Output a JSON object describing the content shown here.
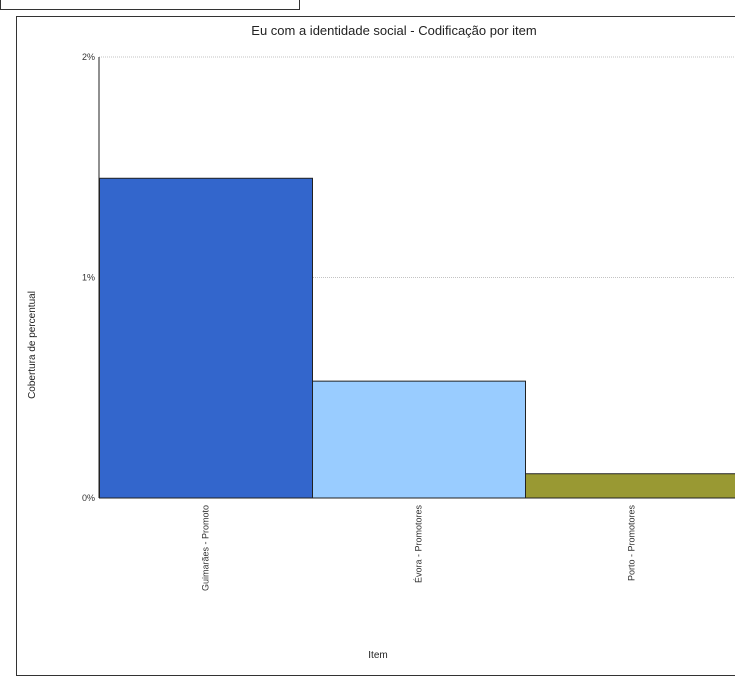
{
  "chart_data": {
    "type": "bar",
    "title": "Eu com a identidade social - Codificação por item",
    "xlabel": "Item",
    "ylabel": "Cobertura de percentual",
    "categories": [
      "Guimarães  - Promoto",
      "Évora  - Promotores",
      "Porto  - Promotores"
    ],
    "values": [
      1.45,
      0.53,
      0.11
    ],
    "colors": [
      "#3366cc",
      "#99ccff",
      "#999933"
    ],
    "y_ticks": [
      {
        "value": 0,
        "label": "0%"
      },
      {
        "value": 1,
        "label": "1%"
      },
      {
        "value": 2,
        "label": "2%"
      }
    ],
    "ylim": [
      0,
      2
    ],
    "grid": true,
    "legend": "none"
  }
}
